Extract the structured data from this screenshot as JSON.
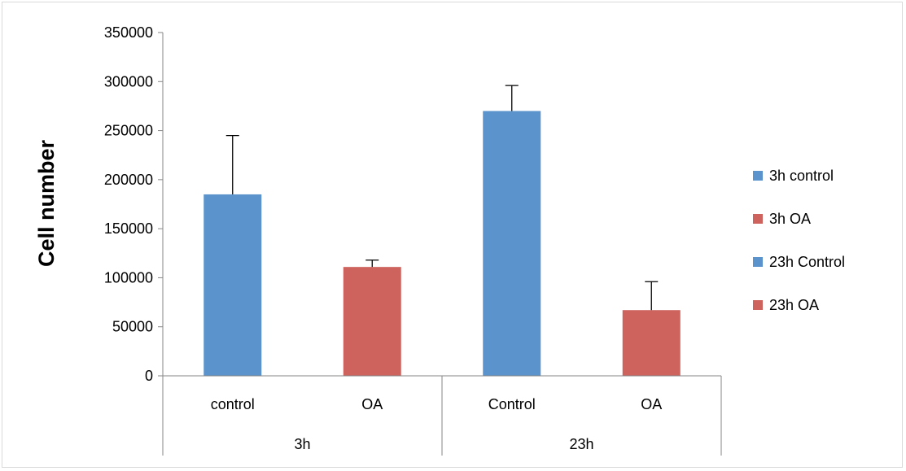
{
  "chart_data": {
    "type": "bar",
    "title": "",
    "xlabel": "",
    "ylabel": "Cell number",
    "ylim": [
      0,
      350000
    ],
    "yticks": [
      "0",
      "50000",
      "100000",
      "150000",
      "200000",
      "250000",
      "300000",
      "350000"
    ],
    "grid": false,
    "legend_position": "right",
    "groups": [
      {
        "label": "3h",
        "categories": [
          "control",
          "OA"
        ]
      },
      {
        "label": "23h",
        "categories": [
          "Control",
          "OA"
        ]
      }
    ],
    "bars": [
      {
        "group": "3h",
        "category": "control",
        "series": "3h control",
        "value": 185000,
        "error": 60000,
        "color": "#5b94cc"
      },
      {
        "group": "3h",
        "category": "OA",
        "series": "3h OA",
        "value": 111000,
        "error": 7000,
        "color": "#ce625d"
      },
      {
        "group": "23h",
        "category": "Control",
        "series": "23h Control",
        "value": 270000,
        "error": 26000,
        "color": "#5b94cc"
      },
      {
        "group": "23h",
        "category": "OA",
        "series": "23h OA",
        "value": 67000,
        "error": 29000,
        "color": "#ce625d"
      }
    ],
    "legend": [
      {
        "name": "3h control",
        "color": "#5b94cc"
      },
      {
        "name": "3h OA",
        "color": "#ce625d"
      },
      {
        "name": "23h Control",
        "color": "#5b94cc"
      },
      {
        "name": "23h OA",
        "color": "#ce625d"
      }
    ]
  }
}
